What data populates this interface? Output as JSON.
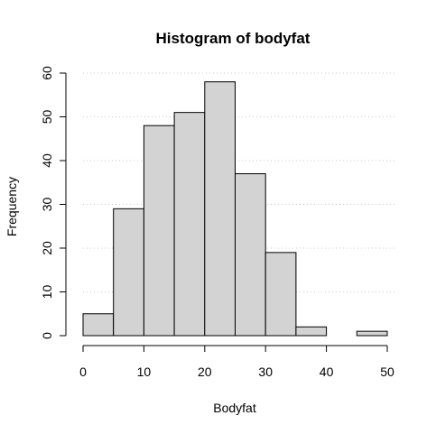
{
  "chart_data": {
    "type": "bar",
    "title": "Histogram of bodyfat",
    "xlabel": "Bodyfat",
    "ylabel": "Frequency",
    "bins": [
      {
        "from": 0,
        "to": 5,
        "value": 5
      },
      {
        "from": 5,
        "to": 10,
        "value": 29
      },
      {
        "from": 10,
        "to": 15,
        "value": 48
      },
      {
        "from": 15,
        "to": 20,
        "value": 51
      },
      {
        "from": 20,
        "to": 25,
        "value": 58
      },
      {
        "from": 25,
        "to": 30,
        "value": 37
      },
      {
        "from": 30,
        "to": 35,
        "value": 19
      },
      {
        "from": 35,
        "to": 40,
        "value": 2
      },
      {
        "from": 40,
        "to": 45,
        "value": 0
      },
      {
        "from": 45,
        "to": 50,
        "value": 1
      }
    ],
    "xlim": [
      0,
      50
    ],
    "ylim": [
      0,
      60
    ],
    "x_ticks": [
      "0",
      "10",
      "20",
      "30",
      "40",
      "50"
    ],
    "y_ticks": [
      "0",
      "10",
      "20",
      "30",
      "40",
      "50",
      "60"
    ],
    "grid": "horizontal-dotted",
    "bar_color": "#d3d3d3"
  }
}
